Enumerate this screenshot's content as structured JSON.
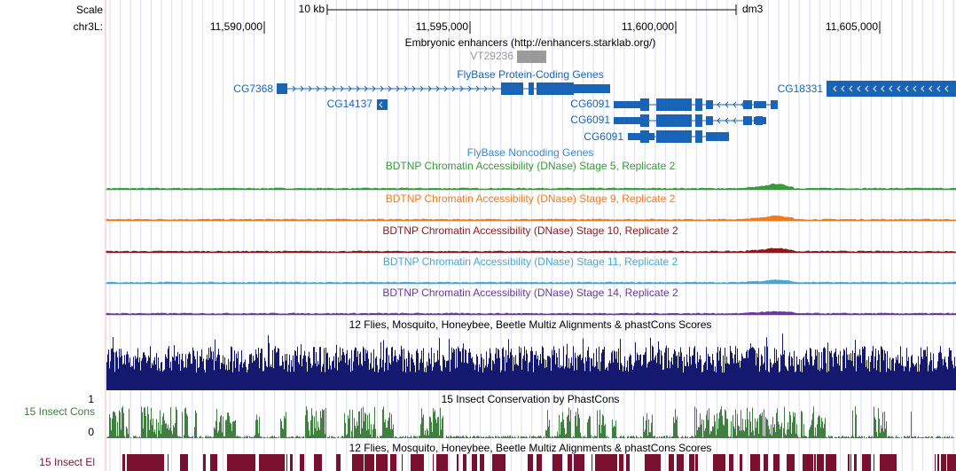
{
  "header": {
    "scale_label": "Scale",
    "chrom_label": "chr3L:",
    "scale_bar": "10 kb",
    "assembly": "dm3",
    "positions": [
      "11,590,000",
      "11,595,000",
      "11,600,000",
      "11,605,000"
    ]
  },
  "tracks": {
    "enhancers": {
      "title": "Embryonic enhancers (http://enhancers.starklab.org/)",
      "items": [
        "VT29236"
      ]
    },
    "protein_coding": {
      "title": "FlyBase Protein-Coding Genes",
      "genes": [
        "CG7368",
        "CG14137",
        "CG6091",
        "CG6091",
        "CG6091",
        "CG18331"
      ]
    },
    "noncoding": {
      "title": "FlyBase Noncoding Genes"
    },
    "dnase": [
      {
        "title": "BDTNP Chromatin Accessibility (DNase) Stage 5, Replicate 2",
        "color": "#3a9a3a"
      },
      {
        "title": "BDTNP Chromatin Accessibility (DNase) Stage 9, Replicate 2",
        "color": "#f07a1e"
      },
      {
        "title": "BDTNP Chromatin Accessibility (DNase) Stage 10, Replicate 2",
        "color": "#8b1a1a"
      },
      {
        "title": "BDTNP Chromatin Accessibility (DNase) Stage 11, Replicate 2",
        "color": "#4aa8d0"
      },
      {
        "title": "BDTNP Chromatin Accessibility (DNase) Stage 14, Replicate 2",
        "color": "#6a3a9a"
      }
    ],
    "multiz": {
      "title": "12 Flies, Mosquito, Honeybee, Beetle Multiz Alignments & phastCons Scores",
      "color": "#14186e"
    },
    "phastcons": {
      "title": "15 Insect Conservation by PhastCons",
      "label": "15 Insect Cons",
      "max": 1,
      "min": 0,
      "color": "#3f7f3f"
    },
    "elements": {
      "title": "12 Flies, Mosquito, Honeybee, Beetle Multiz Alignments & phastCons Scores",
      "label": "15 Insect El",
      "color": "#7a1030"
    }
  }
}
